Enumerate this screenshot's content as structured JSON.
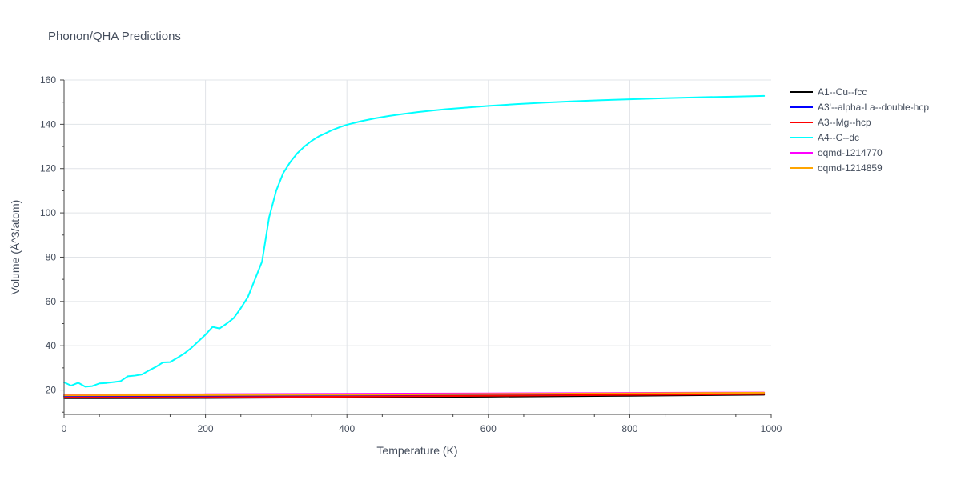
{
  "chart_data": {
    "type": "line",
    "title": "Phonon/QHA Predictions",
    "xlabel": "Temperature (K)",
    "ylabel": "Volume (Å^3/atom)",
    "xlim": [
      0,
      1000
    ],
    "ylim": [
      9,
      160
    ],
    "xticks": [
      0,
      200,
      400,
      600,
      800,
      1000
    ],
    "yticks": [
      20,
      40,
      60,
      80,
      100,
      120,
      140,
      160
    ],
    "grid": true,
    "legend_position": "top-right outside",
    "series": [
      {
        "name": "A1--Cu--fcc",
        "color": "#000000",
        "x": [
          0,
          200,
          400,
          600,
          800,
          990
        ],
        "y": [
          16.3,
          16.4,
          16.7,
          17.0,
          17.4,
          17.9
        ]
      },
      {
        "name": "A3'--alpha-La--double-hcp",
        "color": "#0000ff",
        "x": [
          0,
          200,
          400,
          600,
          800,
          990
        ],
        "y": [
          17.2,
          17.3,
          17.5,
          17.8,
          18.1,
          18.4
        ]
      },
      {
        "name": "A3--Mg--hcp",
        "color": "#ff0000",
        "x": [
          0,
          200,
          400,
          600,
          800,
          990
        ],
        "y": [
          16.6,
          16.7,
          17.0,
          17.4,
          17.8,
          18.2
        ]
      },
      {
        "name": "A4--C--dc",
        "color": "#00ffff",
        "x": [
          0,
          10,
          20,
          30,
          40,
          50,
          60,
          70,
          80,
          90,
          100,
          110,
          120,
          130,
          140,
          150,
          160,
          170,
          180,
          190,
          200,
          210,
          220,
          230,
          240,
          250,
          260,
          270,
          280,
          290,
          300,
          310,
          320,
          330,
          340,
          350,
          360,
          370,
          380,
          390,
          400,
          420,
          440,
          460,
          480,
          500,
          520,
          540,
          560,
          580,
          600,
          640,
          680,
          720,
          760,
          800,
          850,
          900,
          950,
          990
        ],
        "y": [
          23.5,
          22.0,
          23.3,
          21.5,
          21.8,
          23.0,
          23.2,
          23.6,
          24.0,
          26.2,
          26.5,
          27.0,
          28.8,
          30.5,
          32.5,
          32.6,
          34.5,
          36.5,
          39.0,
          42.0,
          45.0,
          48.5,
          47.8,
          50.0,
          52.5,
          57.0,
          62.0,
          70.0,
          78.0,
          98.0,
          110.0,
          118.0,
          123.0,
          127.0,
          130.0,
          132.5,
          134.5,
          136.0,
          137.5,
          138.7,
          139.8,
          141.4,
          142.7,
          143.8,
          144.7,
          145.5,
          146.2,
          146.8,
          147.3,
          147.8,
          148.3,
          149.1,
          149.8,
          150.4,
          150.9,
          151.3,
          151.8,
          152.2,
          152.5,
          152.8
        ]
      },
      {
        "name": "oqmd-1214770",
        "color": "#ff00ff",
        "x": [
          0,
          200,
          400,
          600,
          800,
          990
        ],
        "y": [
          18.0,
          18.1,
          18.3,
          18.5,
          18.7,
          18.9
        ]
      },
      {
        "name": "oqmd-1214859",
        "color": "#ffa500",
        "x": [
          0,
          200,
          400,
          600,
          800,
          990
        ],
        "y": [
          17.6,
          17.7,
          17.9,
          18.2,
          18.5,
          18.8
        ]
      }
    ]
  }
}
